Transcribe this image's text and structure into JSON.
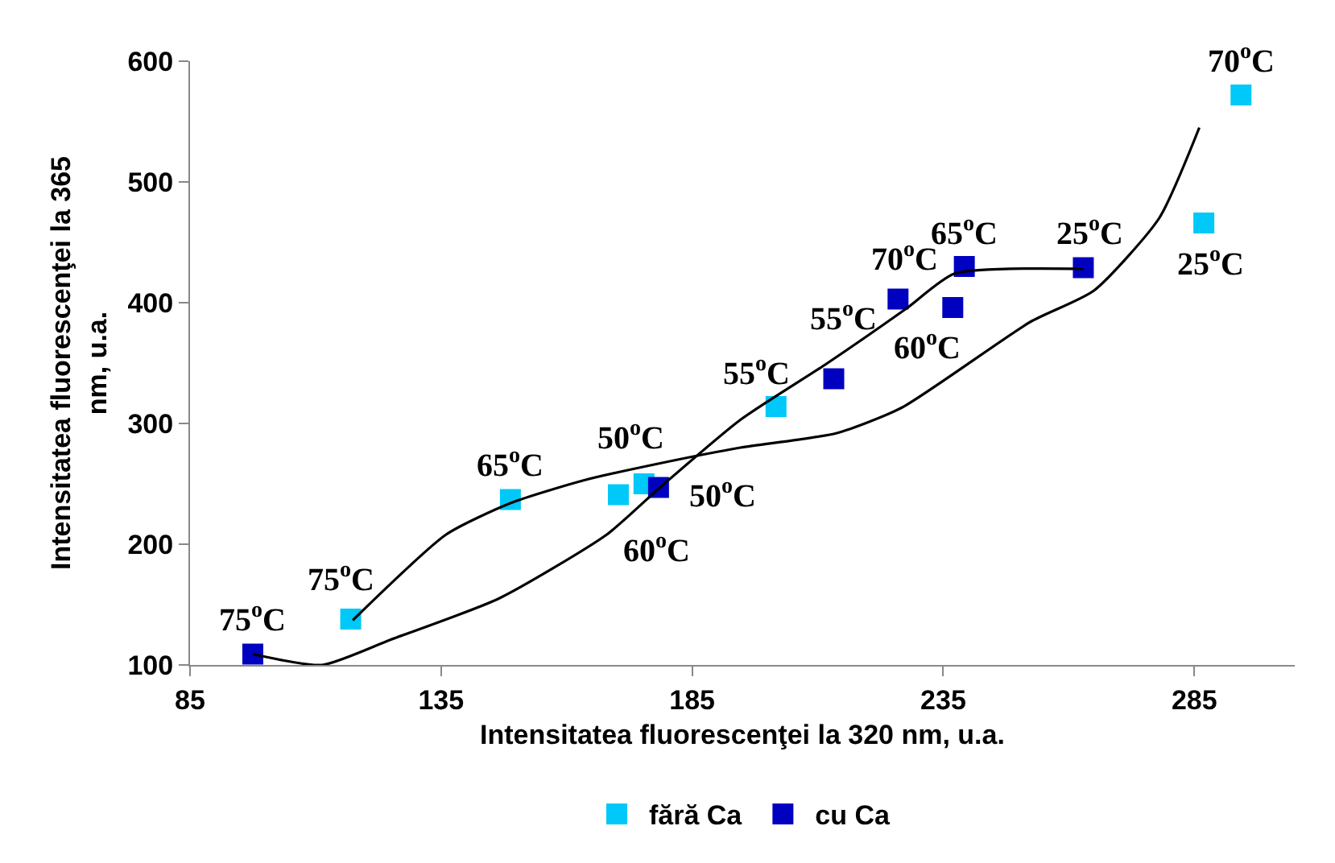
{
  "chart_data": {
    "type": "scatter",
    "xlabel": "Intensitatea fluorescenţei la 320 nm, u.a.",
    "ylabel": "Intensitatea fluorescenţei la 365 nm, u.a.",
    "xlim": [
      85,
      305
    ],
    "xticks": [
      85,
      135,
      185,
      235,
      285
    ],
    "ylim": [
      100,
      600
    ],
    "yticks": [
      100,
      200,
      300,
      400,
      500,
      600
    ],
    "grid": false,
    "legend": "bottom",
    "marker": "square",
    "series": [
      {
        "name": "fără Ca",
        "color": "#00c8f8",
        "x": [
          117,
          148.8,
          170.3,
          175.4,
          201.7,
          286.9,
          294.3
        ],
        "values": [
          138,
          237,
          241,
          250,
          314,
          466,
          572
        ]
      },
      {
        "name": "cu Ca",
        "color": "#0000c0",
        "x": [
          97.5,
          178.3,
          213.2,
          226,
          236.9,
          239.2,
          262.9
        ],
        "values": [
          109,
          247,
          337,
          403,
          396,
          430,
          429
        ]
      },
      {
        "type": "line",
        "color": "#000000",
        "marker": "none",
        "x": [
          117.4,
          136,
          148.8,
          163.5,
          178.6,
          194.6,
          213.8,
          226.7,
          252.3,
          265,
          278,
          286
        ],
        "values": [
          137,
          208,
          234,
          253,
          267,
          280,
          292,
          313,
          384,
          410,
          470,
          545
        ]
      },
      {
        "type": "line",
        "color": "#000000",
        "marker": "none",
        "x": [
          97.5,
          111.3,
          125,
          146.5,
          168,
          178.6,
          194.6,
          211.6,
          227.6,
          237.2,
          262.9
        ],
        "values": [
          109,
          100,
          121,
          155,
          208,
          247,
          303,
          349,
          395,
          424,
          428
        ]
      }
    ],
    "annotations": [
      {
        "text": "75$^{o}$C",
        "x": 117,
        "y": 138
      },
      {
        "text": "65$^{o}$C",
        "x": 148.8,
        "y": 237
      },
      {
        "text": "60$^{o}$C",
        "x": 170.3,
        "y": 241
      },
      {
        "text": "50$^{o}$C",
        "x": 175.4,
        "y": 250
      },
      {
        "text": "55$^{o}$C",
        "x": 201.7,
        "y": 314
      },
      {
        "text": "25$^{o}$C",
        "x": 286.9,
        "y": 466
      },
      {
        "text": "70$^{o}$C",
        "x": 294.3,
        "y": 572
      },
      {
        "text": "75$^{o}$C",
        "x": 97.5,
        "y": 109
      },
      {
        "text": "50$^{o}$C",
        "x": 178.3,
        "y": 247
      },
      {
        "text": "55$^{o}$C",
        "x": 213.2,
        "y": 337
      },
      {
        "text": "70$^{o}$C",
        "x": 226,
        "y": 403
      },
      {
        "text": "60$^{o}$C",
        "x": 236.9,
        "y": 396
      },
      {
        "text": "65$^{o}$C",
        "x": 239.2,
        "y": 430
      },
      {
        "text": "25$^{o}$C",
        "x": 262.9,
        "y": 429
      }
    ]
  }
}
